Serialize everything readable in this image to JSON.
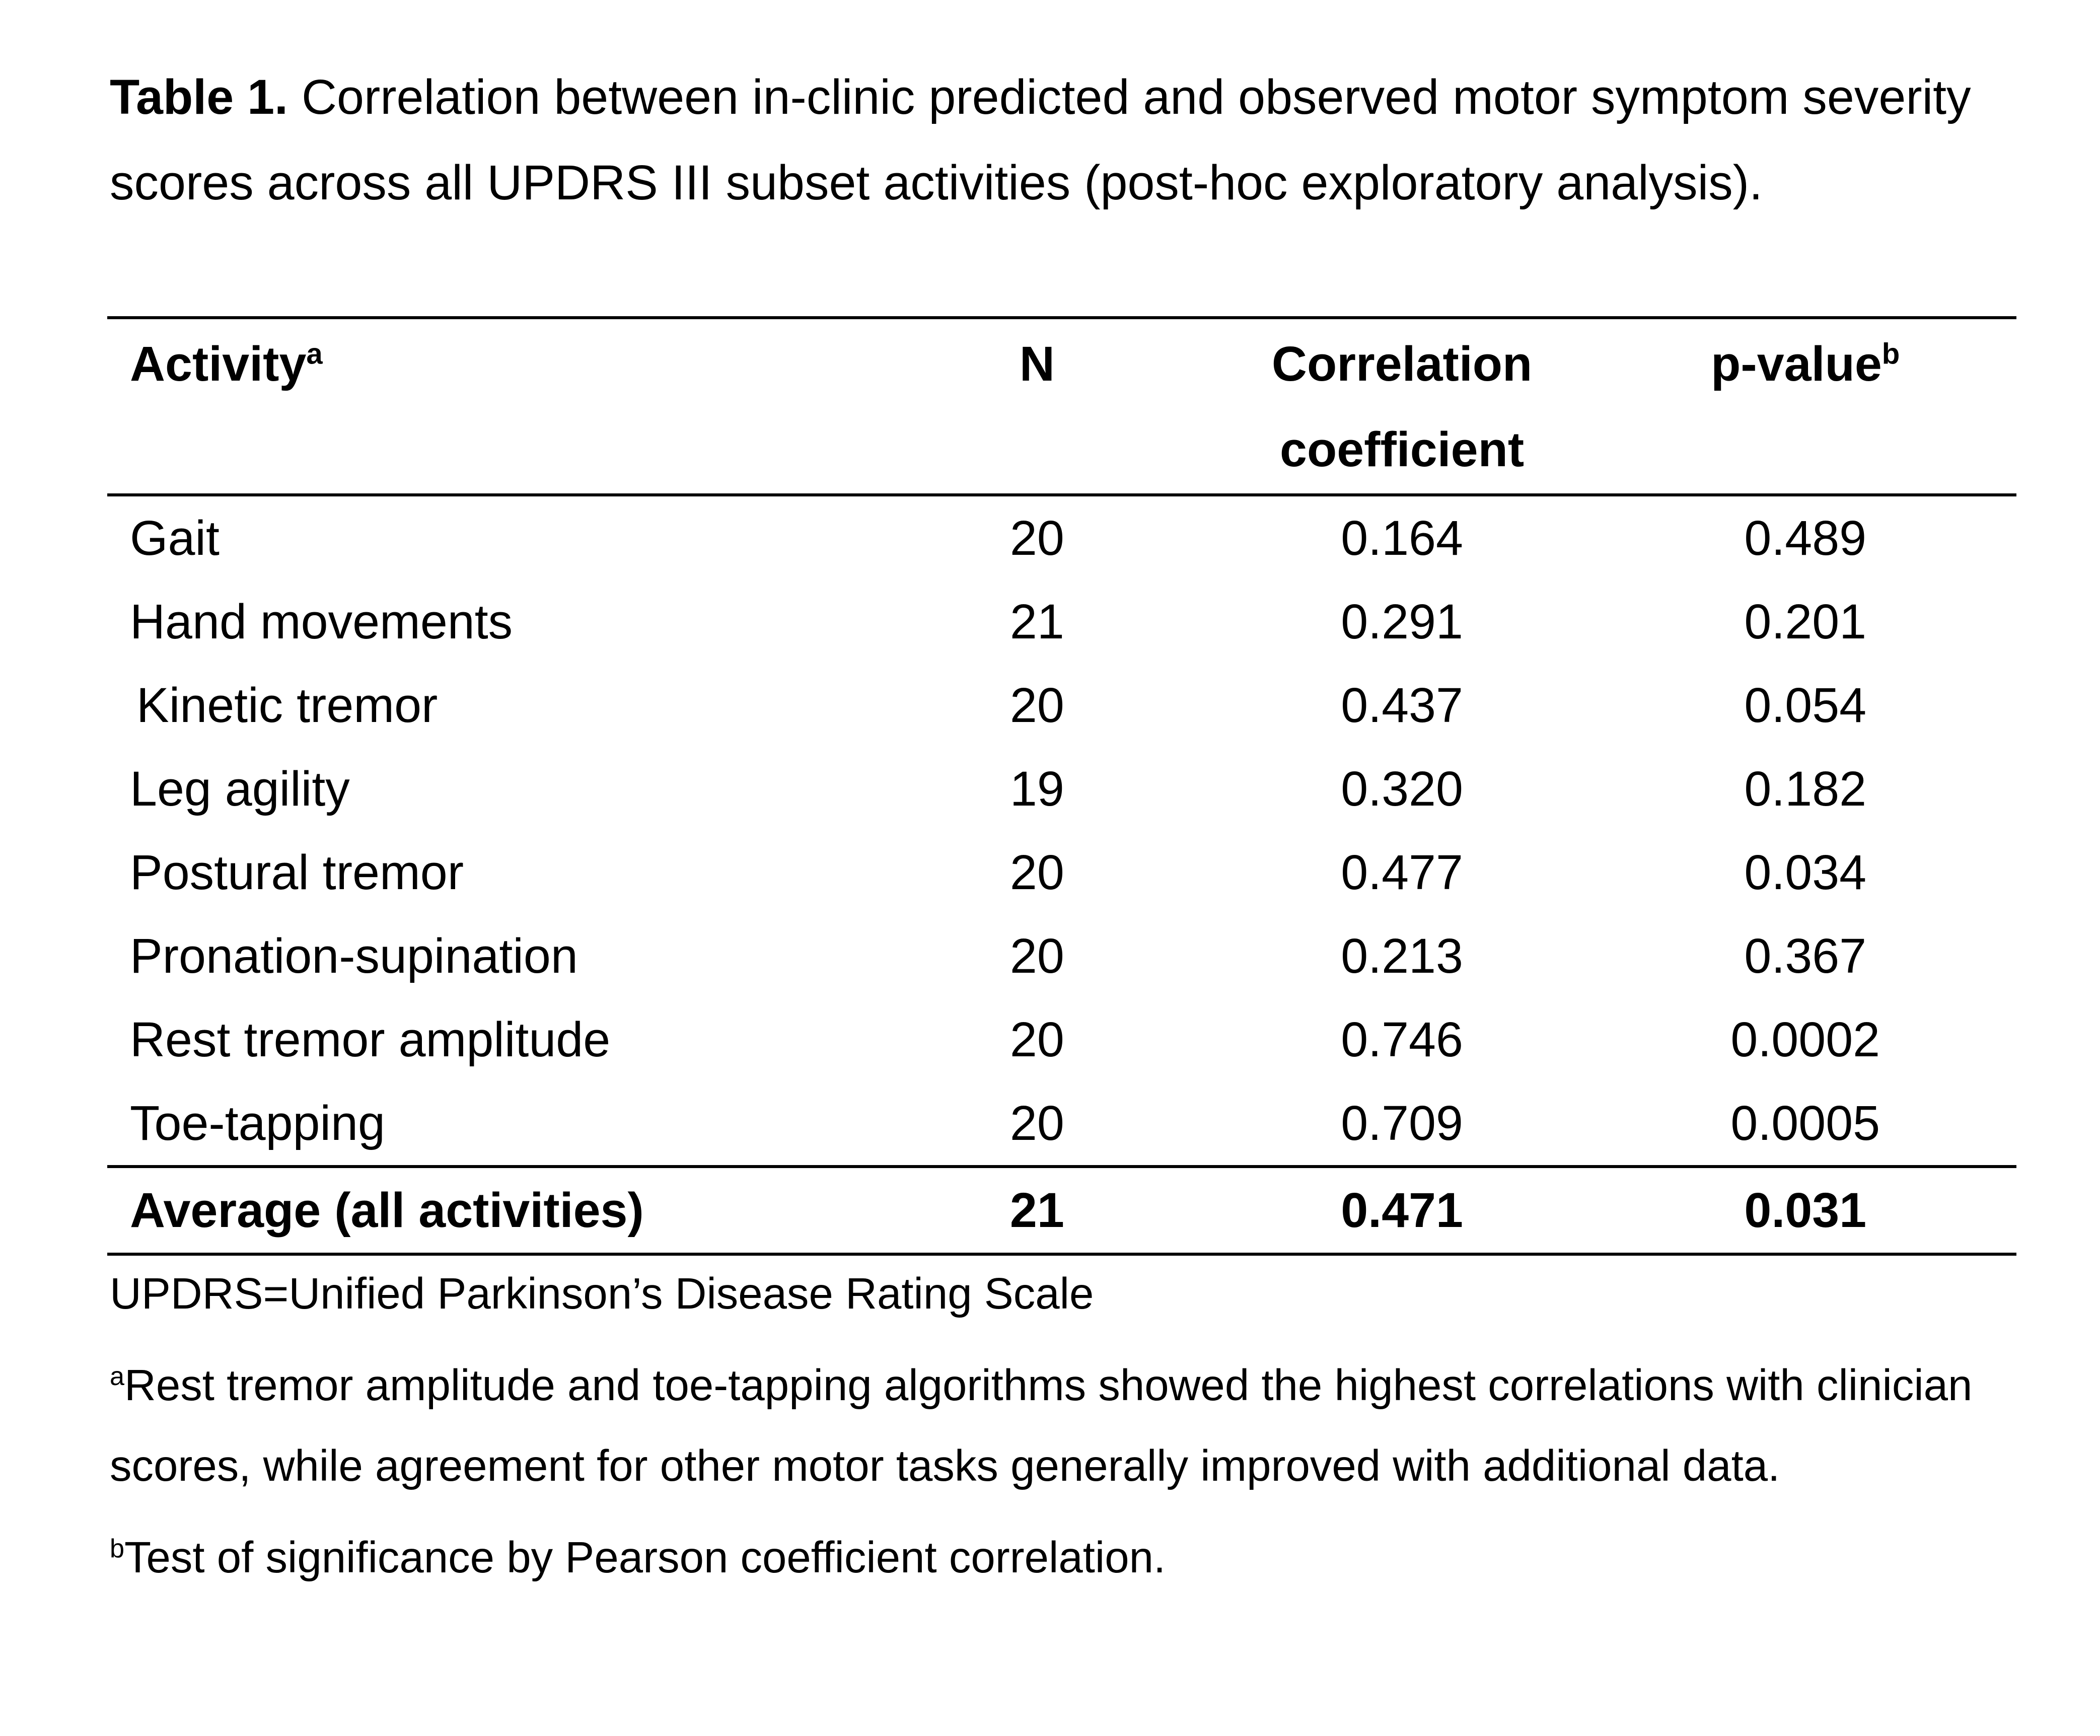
{
  "caption": {
    "label": "Table 1.",
    "text": " Correlation between in-clinic predicted and observed motor symptom severity scores across all UPDRS III subset activities (post-hoc exploratory analysis)."
  },
  "table": {
    "headers": {
      "activity": "Activity",
      "activity_sup": "a",
      "n": "N",
      "corr_line1": "Correlation",
      "corr_line2": "coefficient",
      "p": "p-value",
      "p_sup": "b"
    },
    "rows": [
      {
        "activity": "Gait",
        "n": "20",
        "corr": "0.164",
        "p": "0.489"
      },
      {
        "activity": "Hand movements",
        "n": "21",
        "corr": "0.291",
        "p": "0.201"
      },
      {
        "activity": "Kinetic tremor",
        "n": "20",
        "corr": "0.437",
        "p": "0.054"
      },
      {
        "activity": "Leg agility",
        "n": "19",
        "corr": "0.320",
        "p": "0.182"
      },
      {
        "activity": "Postural tremor",
        "n": "20",
        "corr": "0.477",
        "p": "0.034"
      },
      {
        "activity": "Pronation-supination",
        "n": "20",
        "corr": "0.213",
        "p": "0.367"
      },
      {
        "activity": "Rest tremor amplitude",
        "n": "20",
        "corr": "0.746",
        "p": "0.0002"
      },
      {
        "activity": "Toe-tapping",
        "n": "20",
        "corr": "0.709",
        "p": "0.0005"
      }
    ],
    "average": {
      "activity": "Average (all activities)",
      "n": "21",
      "corr": "0.471",
      "p": "0.031"
    }
  },
  "notes": {
    "abbrev": "UPDRS=Unified Parkinson’s Disease Rating Scale",
    "a_marker": "a",
    "a_text": "Rest tremor amplitude and toe-tapping algorithms showed the highest correlations with clinician scores, while agreement for other motor tasks generally improved with additional data.",
    "b_marker": "b",
    "b_text": "Test of significance by Pearson coefficient correlation."
  }
}
